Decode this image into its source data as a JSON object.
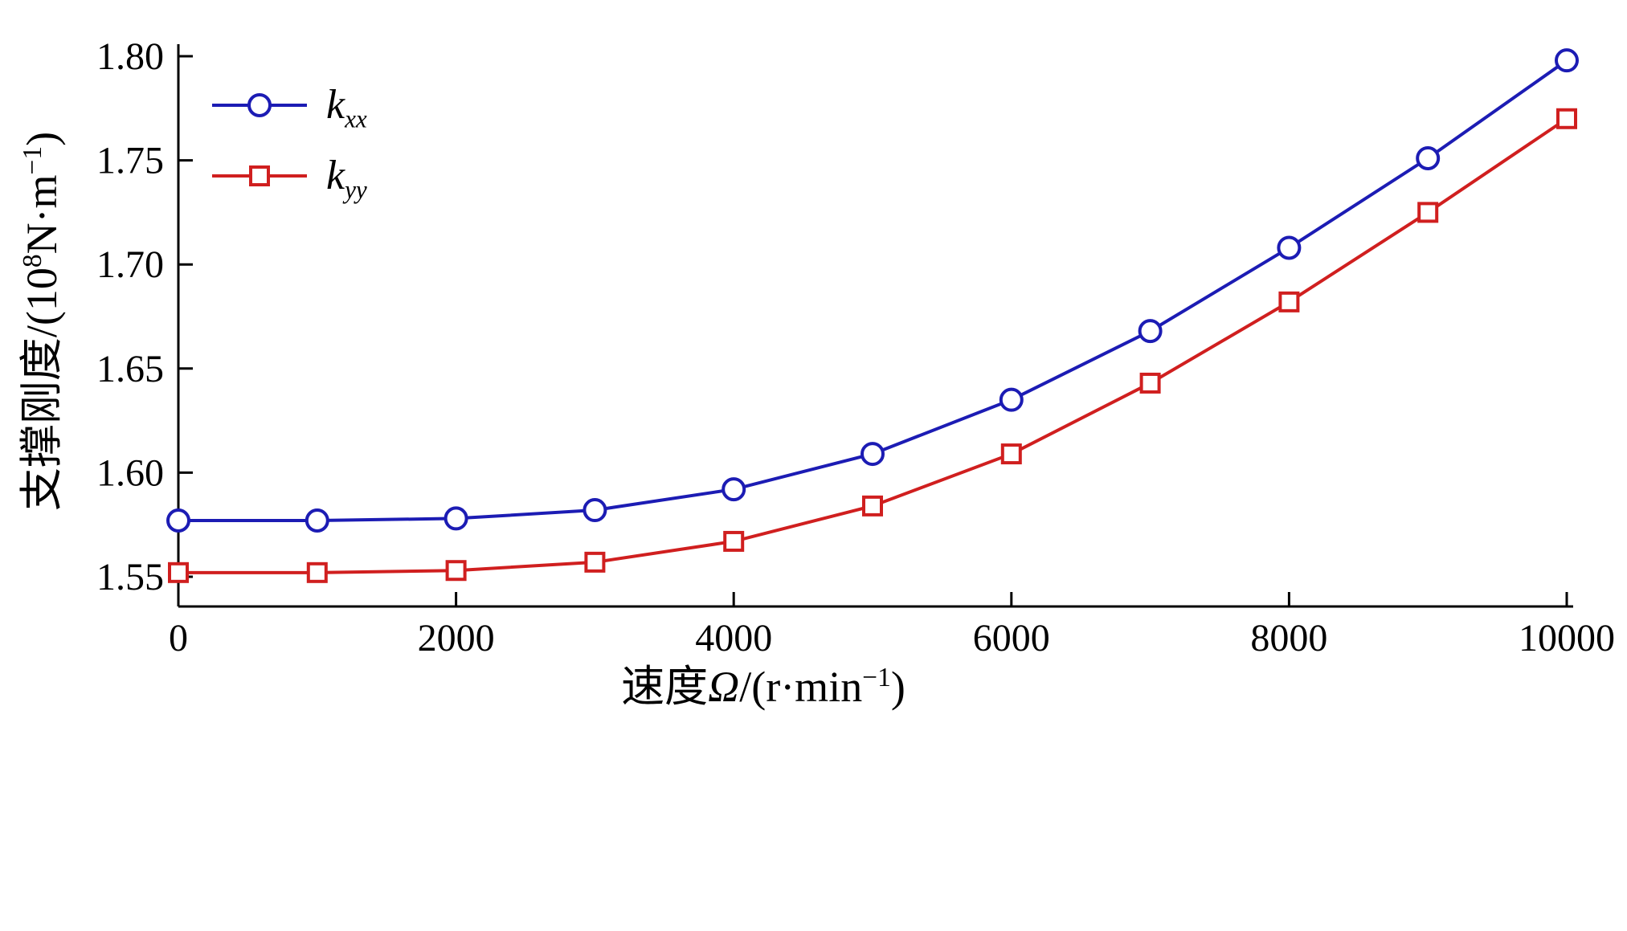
{
  "chart_data": {
    "type": "line",
    "title": "",
    "xlabel": "速度Ω/(r·min⁻¹)",
    "ylabel": "支撑刚度/(10⁸N·m⁻¹)",
    "x": [
      0,
      1000,
      2000,
      3000,
      4000,
      5000,
      6000,
      7000,
      8000,
      9000,
      10000
    ],
    "series": [
      {
        "name": "kxx",
        "label_base": "k",
        "label_sub": "xx",
        "color": "#1c1cb4",
        "marker": "circle",
        "values": [
          1.577,
          1.577,
          1.578,
          1.582,
          1.592,
          1.609,
          1.635,
          1.668,
          1.708,
          1.751,
          1.798
        ]
      },
      {
        "name": "kyy",
        "label_base": "k",
        "label_sub": "yy",
        "color": "#d01f1f",
        "marker": "square",
        "values": [
          1.552,
          1.552,
          1.553,
          1.557,
          1.567,
          1.584,
          1.609,
          1.643,
          1.682,
          1.725,
          1.77
        ]
      }
    ],
    "xlim": [
      0,
      10000
    ],
    "ylim": [
      1.55,
      1.8
    ],
    "xticks": [
      0,
      2000,
      4000,
      6000,
      8000,
      10000
    ],
    "xtick_labels": [
      "0",
      "2000",
      "4000",
      "6000",
      "8000",
      "10000"
    ],
    "yticks": [
      1.55,
      1.6,
      1.65,
      1.7,
      1.75,
      1.8
    ],
    "ytick_labels": [
      "1.55",
      "1.60",
      "1.65",
      "1.70",
      "1.75",
      "1.80"
    ],
    "grid": false,
    "legend_position": "top-left",
    "axis_color": "#000000"
  },
  "labels": {
    "xlabel_parts": [
      "速度",
      "Ω",
      "/(r·min",
      "−1",
      ")"
    ],
    "ylabel_parts": [
      "支撑刚度/(10",
      "8",
      "N·m",
      "−1",
      ")"
    ]
  }
}
